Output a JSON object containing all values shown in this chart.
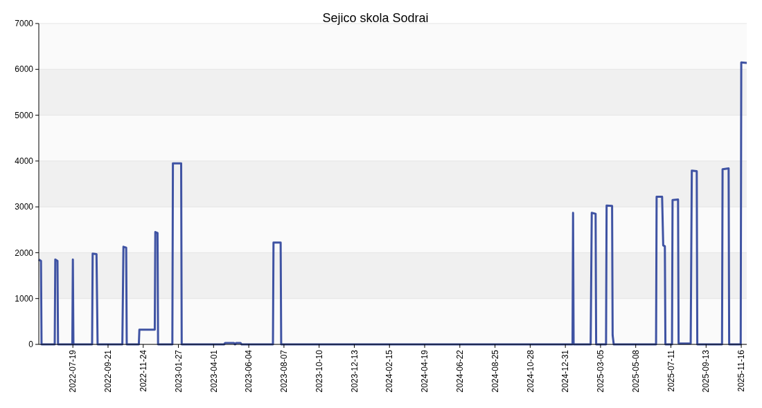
{
  "chart_data": {
    "type": "line",
    "title": "Sejico skola Sodrai",
    "x": [
      "2022-05-18",
      "2022-05-22",
      "2022-05-23",
      "2022-06-16",
      "2022-06-17",
      "2022-06-21",
      "2022-06-22",
      "2022-07-18",
      "2022-07-19",
      "2022-07-20",
      "2022-08-23",
      "2022-08-24",
      "2022-08-31",
      "2022-09-02",
      "2022-10-17",
      "2022-10-19",
      "2022-10-24",
      "2022-10-25",
      "2022-11-16",
      "2022-11-17",
      "2022-12-15",
      "2022-12-16",
      "2022-12-20",
      "2022-12-21",
      "2023-01-16",
      "2023-01-17",
      "2023-02-01",
      "2023-02-02",
      "2023-04-20",
      "2023-04-22",
      "2023-05-08",
      "2023-05-10",
      "2023-05-12",
      "2023-05-20",
      "2023-05-22",
      "2023-07-18",
      "2023-07-19",
      "2023-08-01",
      "2023-08-02",
      "2025-01-13",
      "2025-01-14",
      "2025-01-15",
      "2025-02-15",
      "2025-02-17",
      "2025-02-24",
      "2025-02-25",
      "2025-03-15",
      "2025-03-16",
      "2025-03-26",
      "2025-03-27",
      "2025-03-29",
      "2025-06-14",
      "2025-06-15",
      "2025-06-25",
      "2025-06-27",
      "2025-06-30",
      "2025-07-01",
      "2025-07-13",
      "2025-07-14",
      "2025-07-24",
      "2025-07-25",
      "2025-08-16",
      "2025-08-18",
      "2025-08-27",
      "2025-08-28",
      "2025-10-12",
      "2025-10-13",
      "2025-10-24",
      "2025-10-25",
      "2025-11-15",
      "2025-11-16",
      "2025-11-26"
    ],
    "series": [
      {
        "color": "#3f53a3",
        "values": [
          1850,
          1820,
          0,
          0,
          1850,
          1820,
          0,
          0,
          1850,
          0,
          0,
          1980,
          1970,
          0,
          0,
          2130,
          2110,
          0,
          0,
          320,
          320,
          2450,
          2430,
          0,
          0,
          3950,
          3950,
          0,
          0,
          30,
          30,
          0,
          30,
          30,
          0,
          0,
          2220,
          2220,
          0,
          0,
          2870,
          0,
          0,
          2870,
          2850,
          0,
          0,
          3030,
          3020,
          200,
          0,
          0,
          3220,
          3220,
          2160,
          2140,
          0,
          0,
          3150,
          3160,
          20,
          20,
          3790,
          3780,
          0,
          0,
          3820,
          3840,
          0,
          0,
          6150,
          6140
        ]
      }
    ],
    "xlim": [
      "2022-05-18",
      "2025-11-26"
    ],
    "xticks": [
      "2022-07-19",
      "2022-09-21",
      "2022-11-24",
      "2023-01-27",
      "2023-04-01",
      "2023-06-04",
      "2023-08-07",
      "2023-10-10",
      "2023-12-13",
      "2024-02-15",
      "2024-04-19",
      "2024-06-22",
      "2024-08-25",
      "2024-10-28",
      "2024-12-31",
      "2025-03-05",
      "2025-05-08",
      "2025-07-11",
      "2025-09-13",
      "2025-11-16"
    ],
    "ylim": [
      0,
      7000
    ],
    "yticks": [
      0,
      1000,
      2000,
      3000,
      4000,
      5000,
      6000,
      7000
    ],
    "grid": "y",
    "marker": "none",
    "line_style": "solid"
  }
}
